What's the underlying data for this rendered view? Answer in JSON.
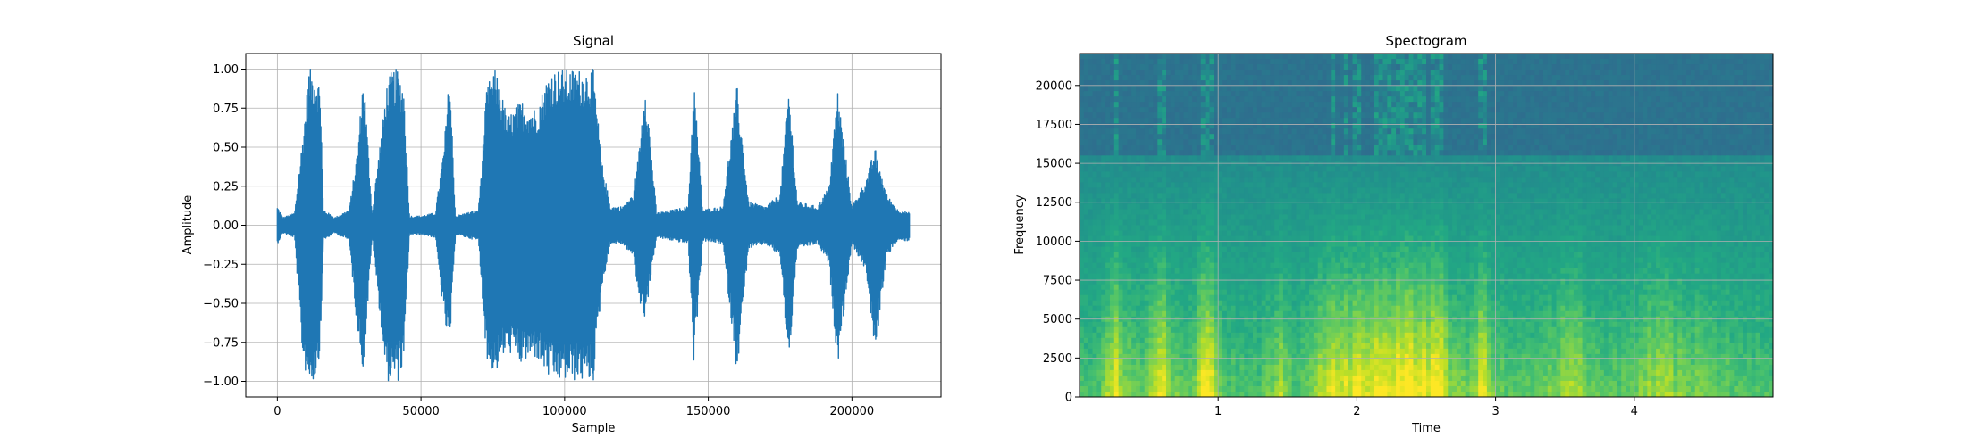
{
  "chart_data": [
    {
      "type": "line",
      "title": "Signal",
      "xlabel": "Sample",
      "ylabel": "Amplitude",
      "xlim": [
        -11000,
        231000
      ],
      "ylim": [
        -1.1,
        1.1
      ],
      "xticks": [
        0,
        50000,
        100000,
        150000,
        200000
      ],
      "xtick_labels": [
        "0",
        "50000",
        "100000",
        "150000",
        "200000"
      ],
      "yticks": [
        -1.0,
        -0.75,
        -0.5,
        -0.25,
        0.0,
        0.25,
        0.5,
        0.75,
        1.0
      ],
      "ytick_labels": [
        "−1.00",
        "−0.75",
        "−0.50",
        "−0.25",
        "0.00",
        "0.25",
        "0.50",
        "0.75",
        "1.00"
      ],
      "grid": true,
      "color": "#1f77b4",
      "series": [
        {
          "x": [
            0,
            2000,
            6000,
            9000,
            11000,
            13000,
            15000,
            16000,
            20000,
            25000,
            28000,
            30000,
            33000,
            38000,
            40000,
            42000,
            44000,
            46000,
            50000,
            55000,
            58000,
            60000,
            62000,
            66000,
            70000,
            73000,
            76000,
            80000,
            85000,
            90000,
            95000,
            100000,
            105000,
            110000,
            113000,
            116000,
            120000,
            124000,
            126000,
            128000,
            132000,
            138000,
            143000,
            145000,
            148000,
            155000,
            160000,
            164000,
            170000,
            175000,
            178000,
            181000,
            188000,
            192000,
            195000,
            200000,
            205000,
            208000,
            212000,
            216000,
            220000
          ],
          "y_upper": [
            0.12,
            0.05,
            0.08,
            0.6,
            1.0,
            1.0,
            0.9,
            0.1,
            0.05,
            0.1,
            0.5,
            1.0,
            0.08,
            0.9,
            1.0,
            1.0,
            0.9,
            0.06,
            0.06,
            0.08,
            0.5,
            1.0,
            0.06,
            0.08,
            0.1,
            0.9,
            1.0,
            0.7,
            0.8,
            0.75,
            1.0,
            1.0,
            1.0,
            1.0,
            0.4,
            0.12,
            0.12,
            0.2,
            0.5,
            0.95,
            0.08,
            0.1,
            0.12,
            0.95,
            0.1,
            0.12,
            0.9,
            0.15,
            0.12,
            0.2,
            0.9,
            0.15,
            0.12,
            0.25,
            0.88,
            0.12,
            0.3,
            0.5,
            0.2,
            0.1,
            0.08
          ],
          "y_lower": [
            -0.12,
            -0.05,
            -0.08,
            -0.9,
            -1.0,
            -1.0,
            -0.8,
            -0.1,
            -0.05,
            -0.1,
            -0.7,
            -0.95,
            -0.08,
            -1.0,
            -1.0,
            -1.0,
            -0.9,
            -0.06,
            -0.06,
            -0.08,
            -0.6,
            -0.8,
            -0.06,
            -0.08,
            -0.1,
            -0.9,
            -0.95,
            -0.8,
            -0.9,
            -0.85,
            -1.0,
            -1.0,
            -1.0,
            -1.0,
            -0.4,
            -0.12,
            -0.12,
            -0.2,
            -0.5,
            -0.6,
            -0.08,
            -0.1,
            -0.12,
            -0.9,
            -0.1,
            -0.12,
            -0.95,
            -0.15,
            -0.12,
            -0.2,
            -0.9,
            -0.15,
            -0.12,
            -0.25,
            -0.9,
            -0.12,
            -0.3,
            -0.85,
            -0.2,
            -0.1,
            -0.1
          ]
        }
      ]
    },
    {
      "type": "heatmap",
      "title": "Spectogram",
      "xlabel": "Time",
      "ylabel": "Frequency",
      "xlim": [
        0,
        5.0
      ],
      "ylim": [
        0,
        22050
      ],
      "xticks": [
        1,
        2,
        3,
        4
      ],
      "xtick_labels": [
        "1",
        "2",
        "3",
        "4"
      ],
      "yticks": [
        0,
        2500,
        5000,
        7500,
        10000,
        12500,
        15000,
        17500,
        20000
      ],
      "ytick_labels": [
        "0",
        "2500",
        "5000",
        "7500",
        "10000",
        "12500",
        "15000",
        "17500",
        "20000"
      ],
      "grid": true,
      "colormap": "viridis",
      "cutoff_frequency": 15500,
      "high_band_color": "#2d6e8e",
      "time_profile": {
        "t": [
          0.0,
          0.15,
          0.25,
          0.3,
          0.45,
          0.6,
          0.65,
          0.8,
          0.9,
          0.95,
          1.05,
          1.3,
          1.45,
          1.55,
          1.7,
          1.8,
          2.0,
          2.2,
          2.4,
          2.6,
          2.7,
          2.8,
          2.9,
          3.0,
          3.2,
          3.4,
          3.55,
          3.7,
          3.9,
          4.1,
          4.3,
          4.6,
          5.0
        ],
        "energy": [
          0.3,
          0.35,
          0.85,
          0.6,
          0.4,
          0.8,
          0.5,
          0.4,
          0.9,
          0.8,
          0.35,
          0.3,
          0.65,
          0.3,
          0.5,
          0.8,
          0.75,
          0.95,
          0.9,
          0.85,
          0.5,
          0.4,
          0.85,
          0.4,
          0.35,
          0.45,
          0.65,
          0.4,
          0.35,
          0.6,
          0.55,
          0.4,
          0.3
        ]
      }
    }
  ]
}
